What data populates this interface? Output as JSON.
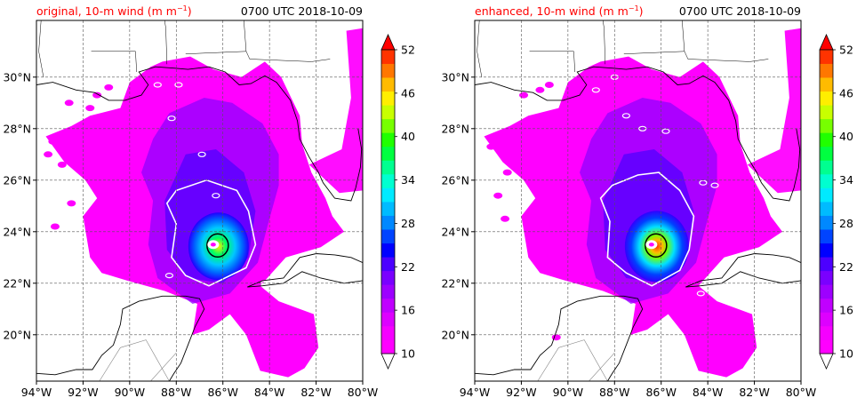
{
  "panels": [
    {
      "id": "original",
      "title_left": "original, 10-m wind (m m",
      "title_sup": "−1",
      "title_close": ")",
      "title_right": "0700 UTC 2018-10-09"
    },
    {
      "id": "enhanced",
      "title_left": "enhanced, 10-m wind (m m",
      "title_sup": "−1",
      "title_close": ")",
      "title_right": "0700 UTC 2018-10-09"
    }
  ],
  "x_ticks": [
    "94°W",
    "92°W",
    "90°W",
    "88°W",
    "86°W",
    "84°W",
    "82°W",
    "80°W"
  ],
  "y_ticks": [
    "30°N",
    "28°N",
    "26°N",
    "24°N",
    "22°N",
    "20°N"
  ],
  "colorbar": {
    "tick_labels": [
      "10",
      "16",
      "22",
      "28",
      "34",
      "40",
      "46",
      "52"
    ],
    "levels": [
      10,
      12,
      14,
      16,
      18,
      20,
      22,
      24,
      26,
      28,
      30,
      32,
      34,
      36,
      38,
      40,
      42,
      44,
      46,
      48,
      50,
      52
    ],
    "colors": [
      "#ff00ff",
      "#f500ff",
      "#dd00ff",
      "#c000ff",
      "#9d00ff",
      "#7a00ff",
      "#4c00ff",
      "#0000ff",
      "#0044ff",
      "#0088ff",
      "#00bbff",
      "#00eaff",
      "#00ffd0",
      "#00ff90",
      "#00ff40",
      "#20ff00",
      "#77ff00",
      "#c8ff00",
      "#ffee00",
      "#ffbb00",
      "#ff7700",
      "#ff3300"
    ],
    "extend": "both"
  },
  "map": {
    "lon_range": [
      -94,
      -80
    ],
    "lat_range": [
      18.2,
      32.2
    ],
    "grid": "dashed",
    "storm_center": {
      "lon": -86.3,
      "lat": 23.5
    }
  },
  "colors": {
    "title_left": "#ff0000",
    "title_right": "#000000",
    "grid": "#555555",
    "contour_outer": "#ffffff",
    "contour_inner": "#000000"
  }
}
